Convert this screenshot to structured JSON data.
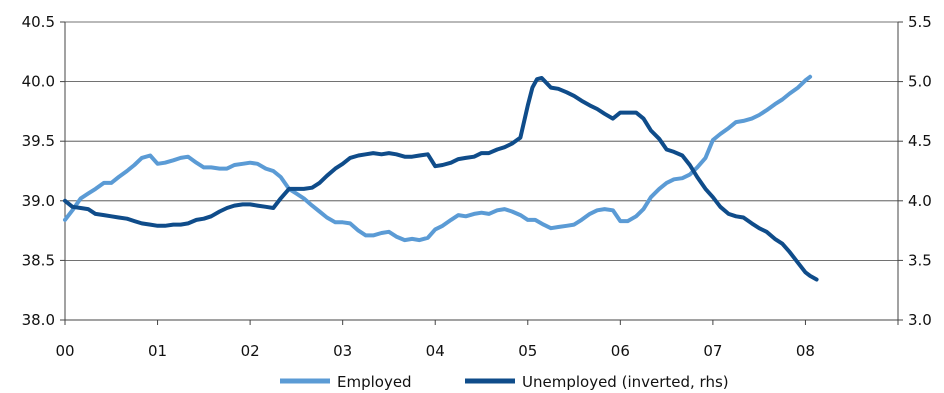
{
  "chart_data": {
    "type": "line",
    "title": "",
    "xlabel": "",
    "ylabel": "",
    "x_ticks": [
      "00",
      "01",
      "02",
      "03",
      "04",
      "05",
      "06",
      "07",
      "08"
    ],
    "xlim": [
      0,
      9
    ],
    "ylim_left": [
      38.0,
      40.5
    ],
    "ylim_right": [
      3.0,
      5.5
    ],
    "y_ticks_left": [
      "38.0",
      "38.5",
      "39.0",
      "39.5",
      "40.0",
      "40.5"
    ],
    "y_ticks_right": [
      "3.0",
      "3.5",
      "4.0",
      "4.5",
      "5.0",
      "5.5"
    ],
    "right_axis_inverted_note": "",
    "grid": "horizontal",
    "legend_position": "bottom",
    "series": [
      {
        "name": "Employed",
        "axis": "left",
        "color": "#5b9bd5",
        "x": [
          0.0,
          0.08,
          0.17,
          0.25,
          0.33,
          0.42,
          0.5,
          0.58,
          0.67,
          0.75,
          0.83,
          0.92,
          1.0,
          1.08,
          1.17,
          1.25,
          1.33,
          1.42,
          1.5,
          1.58,
          1.67,
          1.75,
          1.83,
          1.92,
          2.0,
          2.08,
          2.17,
          2.25,
          2.33,
          2.42,
          2.5,
          2.58,
          2.67,
          2.75,
          2.83,
          2.92,
          3.0,
          3.08,
          3.17,
          3.25,
          3.33,
          3.42,
          3.5,
          3.58,
          3.67,
          3.75,
          3.83,
          3.92,
          4.0,
          4.08,
          4.17,
          4.25,
          4.33,
          4.42,
          4.5,
          4.58,
          4.67,
          4.75,
          4.83,
          4.92,
          5.0,
          5.08,
          5.17,
          5.25,
          5.33,
          5.42,
          5.5,
          5.58,
          5.67,
          5.75,
          5.83,
          5.92,
          6.0,
          6.08,
          6.17,
          6.25,
          6.33,
          6.42,
          6.5,
          6.58,
          6.67,
          6.75,
          6.83,
          6.92,
          7.0,
          7.08,
          7.17,
          7.25,
          7.33,
          7.42,
          7.5,
          7.58,
          7.67,
          7.75,
          7.83,
          7.92,
          8.0,
          8.05
        ],
        "values": [
          38.84,
          38.92,
          39.02,
          39.06,
          39.1,
          39.15,
          39.15,
          39.2,
          39.25,
          39.3,
          39.36,
          39.38,
          39.31,
          39.32,
          39.34,
          39.36,
          39.37,
          39.32,
          39.28,
          39.28,
          39.27,
          39.27,
          39.3,
          39.31,
          39.32,
          39.31,
          39.27,
          39.25,
          39.2,
          39.1,
          39.06,
          39.02,
          38.96,
          38.91,
          38.86,
          38.82,
          38.82,
          38.81,
          38.75,
          38.71,
          38.71,
          38.73,
          38.74,
          38.7,
          38.67,
          38.68,
          38.67,
          38.69,
          38.76,
          38.79,
          38.84,
          38.88,
          38.87,
          38.89,
          38.9,
          38.89,
          38.92,
          38.93,
          38.91,
          38.88,
          38.84,
          38.84,
          38.8,
          38.77,
          38.78,
          38.79,
          38.8,
          38.84,
          38.89,
          38.92,
          38.93,
          38.92,
          38.83,
          38.83,
          38.87,
          38.93,
          39.03,
          39.1,
          39.15,
          39.18,
          39.19,
          39.22,
          39.28,
          39.36,
          39.51,
          39.56,
          39.61,
          39.66,
          39.67,
          39.69,
          39.72,
          39.76,
          39.81,
          39.85,
          39.9,
          39.95,
          40.01,
          40.04
        ]
      },
      {
        "name": "Unemployed (inverted, rhs)",
        "axis": "right",
        "color": "#0f4c8a",
        "x": [
          0.0,
          0.08,
          0.17,
          0.25,
          0.33,
          0.42,
          0.5,
          0.58,
          0.67,
          0.75,
          0.83,
          0.92,
          1.0,
          1.08,
          1.17,
          1.25,
          1.33,
          1.42,
          1.5,
          1.58,
          1.67,
          1.75,
          1.83,
          1.92,
          2.0,
          2.08,
          2.17,
          2.25,
          2.33,
          2.42,
          2.5,
          2.58,
          2.67,
          2.75,
          2.83,
          2.92,
          3.0,
          3.08,
          3.17,
          3.25,
          3.33,
          3.42,
          3.5,
          3.58,
          3.67,
          3.75,
          3.83,
          3.92,
          4.0,
          4.08,
          4.17,
          4.25,
          4.33,
          4.42,
          4.5,
          4.58,
          4.67,
          4.75,
          4.83,
          4.92,
          5.0,
          5.05,
          5.1,
          5.15,
          5.2,
          5.25,
          5.33,
          5.42,
          5.5,
          5.58,
          5.67,
          5.75,
          5.83,
          5.92,
          6.0,
          6.08,
          6.17,
          6.25,
          6.33,
          6.42,
          6.5,
          6.58,
          6.67,
          6.75,
          6.83,
          6.92,
          7.0,
          7.08,
          7.17,
          7.25,
          7.33,
          7.42,
          7.5,
          7.58,
          7.67,
          7.75,
          7.83,
          7.92,
          8.0,
          8.05,
          8.12
        ],
        "values": [
          4.0,
          3.95,
          3.94,
          3.93,
          3.89,
          3.88,
          3.87,
          3.86,
          3.85,
          3.83,
          3.81,
          3.8,
          3.79,
          3.79,
          3.8,
          3.8,
          3.81,
          3.84,
          3.85,
          3.87,
          3.91,
          3.94,
          3.96,
          3.97,
          3.97,
          3.96,
          3.95,
          3.94,
          4.02,
          4.1,
          4.1,
          4.1,
          4.11,
          4.15,
          4.21,
          4.27,
          4.31,
          4.36,
          4.38,
          4.39,
          4.4,
          4.39,
          4.4,
          4.39,
          4.37,
          4.37,
          4.38,
          4.39,
          4.29,
          4.3,
          4.32,
          4.35,
          4.36,
          4.37,
          4.4,
          4.4,
          4.43,
          4.45,
          4.48,
          4.53,
          4.8,
          4.95,
          5.02,
          5.03,
          4.99,
          4.95,
          4.94,
          4.91,
          4.88,
          4.84,
          4.8,
          4.77,
          4.73,
          4.69,
          4.74,
          4.74,
          4.74,
          4.69,
          4.59,
          4.52,
          4.43,
          4.41,
          4.38,
          4.3,
          4.2,
          4.1,
          4.03,
          3.95,
          3.89,
          3.87,
          3.86,
          3.81,
          3.77,
          3.74,
          3.68,
          3.64,
          3.57,
          3.48,
          3.4,
          3.37,
          3.34
        ]
      }
    ]
  }
}
